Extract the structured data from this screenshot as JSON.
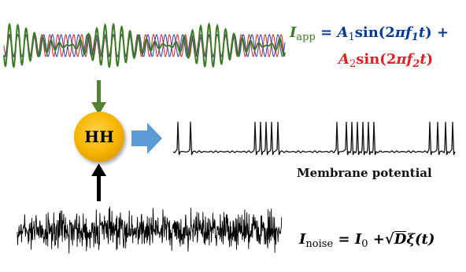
{
  "hh_label": "HH",
  "membrane_label": "Membrane potential",
  "i_app": {
    "symbol": "I",
    "subscript": "app",
    "equals": "=",
    "term1_amp": "A",
    "term1_amp_sub": "1",
    "term1_sin": "sin(2",
    "term1_pi": "π",
    "term1_freq": "f",
    "term1_freq_sub": "1",
    "term1_t": "t",
    "term1_close": ") +",
    "term2_amp": "A",
    "term2_amp_sub": "2",
    "term2_sin": "sin(2",
    "term2_pi": "π",
    "term2_freq": "f",
    "term2_freq_sub": "2",
    "term2_t": "t",
    "term2_close": ")"
  },
  "i_noise": {
    "symbol": "I",
    "subscript": "noise",
    "equals": "=",
    "i0": "I",
    "i0_sub": "0",
    "plus": "+",
    "sqrt": "√",
    "d": "D",
    "xi": "ξ",
    "t": "(t)"
  },
  "colors": {
    "green": "#3a7d22",
    "blue": "#003a99",
    "red": "#e02020",
    "hh_fill": "#f7b500",
    "arrow_blue": "#5b9bd5",
    "noise": "#000000"
  }
}
